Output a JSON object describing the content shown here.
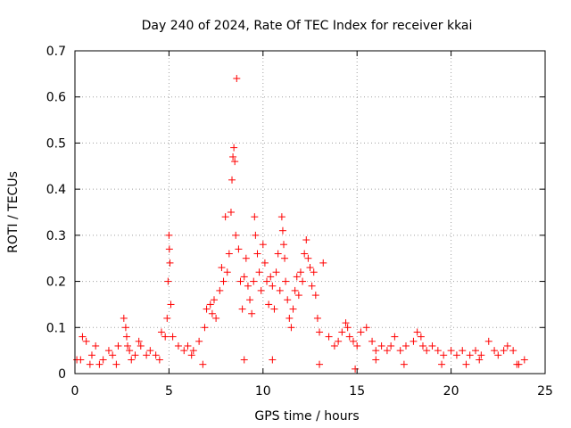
{
  "chart_data": {
    "type": "scatter",
    "title": "Day 240 of 2024, Rate Of TEC Index for receiver kkai",
    "xlabel": "GPS time / hours",
    "ylabel": "ROTI / TECUs",
    "xlim": [
      0,
      25
    ],
    "ylim": [
      0,
      0.7
    ],
    "x_ticks": [
      "0",
      "5",
      "10",
      "15",
      "20",
      "25"
    ],
    "y_ticks": [
      "0",
      "0.1",
      "0.2",
      "0.3",
      "0.4",
      "0.5",
      "0.6",
      "0.7"
    ],
    "grid": true,
    "marker": "+",
    "color": "#ff0000",
    "series": [
      {
        "name": "ROTI",
        "x": [
          0.1,
          0.4,
          0.6,
          0.9,
          1.1,
          1.5,
          1.8,
          2.0,
          2.3,
          2.6,
          2.7,
          2.75,
          2.8,
          2.9,
          3.2,
          3.4,
          3.5,
          3.8,
          4.0,
          4.3,
          4.6,
          4.8,
          4.9,
          4.95,
          5.0,
          5.02,
          5.05,
          5.1,
          5.2,
          5.5,
          5.8,
          6.0,
          6.3,
          6.6,
          6.9,
          7.0,
          7.2,
          7.3,
          7.4,
          7.5,
          7.7,
          7.8,
          7.9,
          8.0,
          8.1,
          8.2,
          8.3,
          8.35,
          8.4,
          8.45,
          8.5,
          8.55,
          8.6,
          8.7,
          8.8,
          8.9,
          9.0,
          9.1,
          9.2,
          9.3,
          9.4,
          9.5,
          9.55,
          9.6,
          9.7,
          9.8,
          9.9,
          10.0,
          10.1,
          10.2,
          10.3,
          10.4,
          10.5,
          10.6,
          10.7,
          10.8,
          10.9,
          11.0,
          11.05,
          11.1,
          11.15,
          11.2,
          11.3,
          11.4,
          11.5,
          11.6,
          11.7,
          11.8,
          11.9,
          12.0,
          12.1,
          12.2,
          12.3,
          12.4,
          12.5,
          12.6,
          12.7,
          12.8,
          12.9,
          13.0,
          13.2,
          13.5,
          13.8,
          14.0,
          14.2,
          14.4,
          14.5,
          14.6,
          14.8,
          15.0,
          15.2,
          15.5,
          15.8,
          16.0,
          16.3,
          16.6,
          16.8,
          17.0,
          17.3,
          17.6,
          18.0,
          18.2,
          18.4,
          18.5,
          18.7,
          19.0,
          19.3,
          19.6,
          20.0,
          20.3,
          20.6,
          21.0,
          21.3,
          21.6,
          22.0,
          22.3,
          22.5,
          22.8,
          23.0,
          23.3,
          23.6,
          23.9,
          0.3,
          1.3,
          3.0,
          4.5,
          6.2,
          9.0,
          10.5,
          13.0,
          16.0,
          17.5,
          19.5,
          21.5,
          23.5,
          0.8,
          2.2,
          6.8,
          14.9,
          20.8
        ],
        "y": [
          0.03,
          0.08,
          0.07,
          0.04,
          0.06,
          0.03,
          0.05,
          0.04,
          0.06,
          0.12,
          0.1,
          0.08,
          0.06,
          0.05,
          0.04,
          0.07,
          0.06,
          0.04,
          0.05,
          0.04,
          0.09,
          0.08,
          0.12,
          0.2,
          0.3,
          0.27,
          0.24,
          0.15,
          0.08,
          0.06,
          0.05,
          0.06,
          0.05,
          0.07,
          0.1,
          0.14,
          0.15,
          0.13,
          0.16,
          0.12,
          0.18,
          0.23,
          0.2,
          0.34,
          0.22,
          0.26,
          0.35,
          0.42,
          0.47,
          0.49,
          0.46,
          0.3,
          0.64,
          0.27,
          0.2,
          0.14,
          0.21,
          0.25,
          0.19,
          0.16,
          0.13,
          0.2,
          0.34,
          0.3,
          0.26,
          0.22,
          0.18,
          0.28,
          0.24,
          0.2,
          0.15,
          0.21,
          0.19,
          0.14,
          0.22,
          0.26,
          0.18,
          0.34,
          0.31,
          0.28,
          0.25,
          0.2,
          0.16,
          0.12,
          0.1,
          0.14,
          0.18,
          0.21,
          0.17,
          0.22,
          0.2,
          0.26,
          0.29,
          0.25,
          0.23,
          0.19,
          0.22,
          0.17,
          0.12,
          0.09,
          0.24,
          0.08,
          0.06,
          0.07,
          0.09,
          0.11,
          0.1,
          0.08,
          0.07,
          0.06,
          0.09,
          0.1,
          0.07,
          0.05,
          0.06,
          0.05,
          0.06,
          0.08,
          0.05,
          0.06,
          0.07,
          0.09,
          0.08,
          0.06,
          0.05,
          0.06,
          0.05,
          0.04,
          0.05,
          0.04,
          0.05,
          0.04,
          0.05,
          0.04,
          0.07,
          0.05,
          0.04,
          0.05,
          0.06,
          0.05,
          0.02,
          0.03,
          0.03,
          0.02,
          0.03,
          0.03,
          0.04,
          0.03,
          0.03,
          0.02,
          0.03,
          0.02,
          0.02,
          0.03,
          0.02,
          0.02,
          0.02,
          0.02,
          0.01,
          0.02
        ]
      }
    ]
  }
}
